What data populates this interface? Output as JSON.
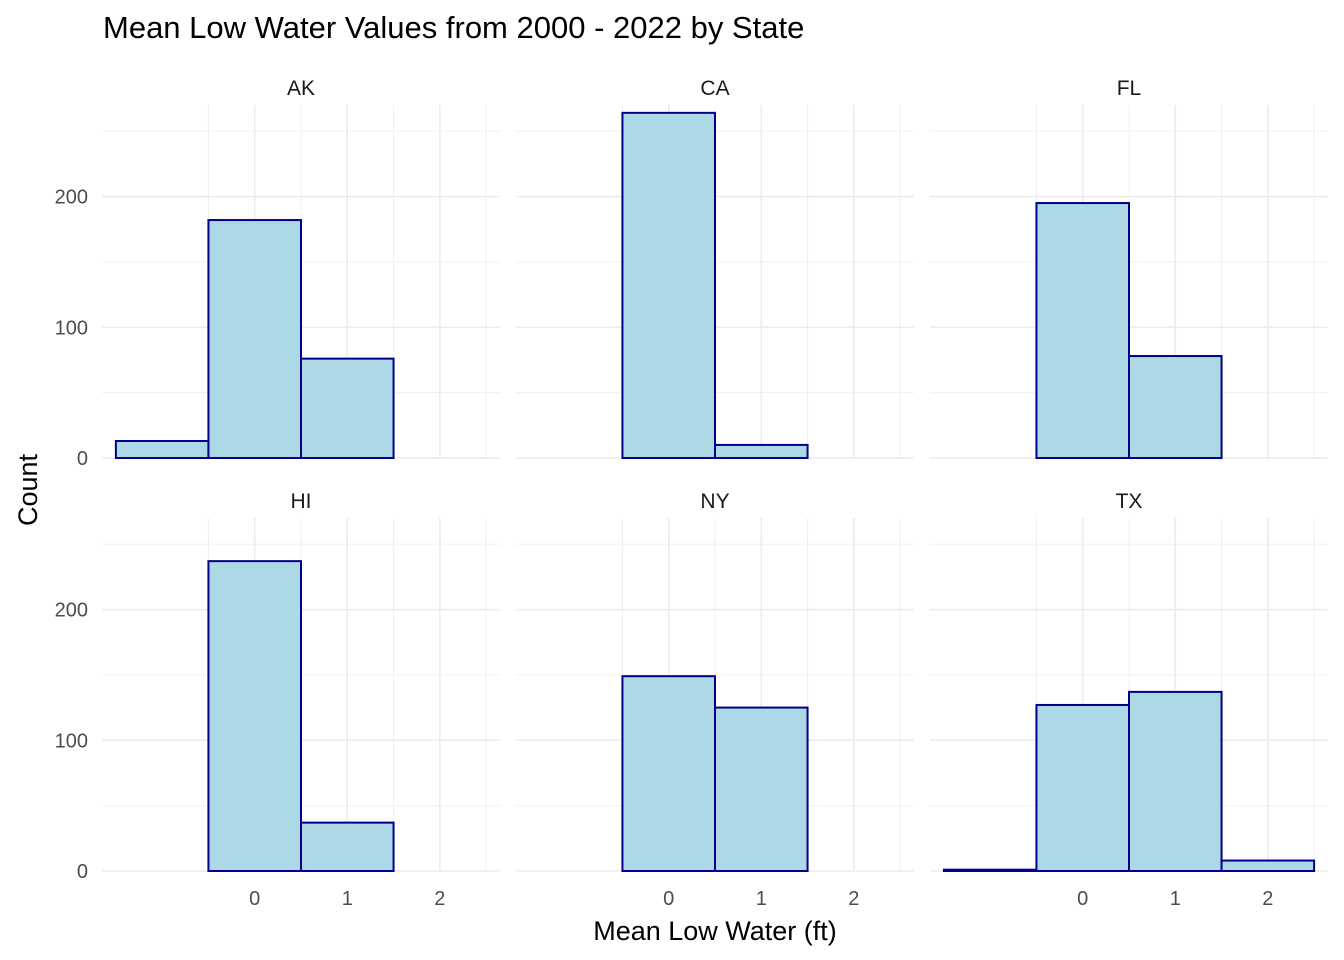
{
  "chart_data": {
    "type": "bar",
    "title": "Mean Low Water Values from 2000 - 2022 by State",
    "xlabel": "Mean Low Water (ft)",
    "ylabel": "Count",
    "x_ticks": [
      "0",
      "1",
      "2"
    ],
    "y_ticks": [
      "0",
      "100",
      "200"
    ],
    "xlim": [
      -1.65,
      2.65
    ],
    "ylim": [
      0,
      270
    ],
    "bin_centers": [
      -1,
      0,
      1,
      2
    ],
    "bin_width": 1,
    "grid": true,
    "fill_color": "#add8e6",
    "outline_color": "#00008b",
    "panels": [
      {
        "state": "AK",
        "values": [
          13,
          182,
          76,
          0
        ]
      },
      {
        "state": "CA",
        "values": [
          0,
          264,
          10,
          0
        ]
      },
      {
        "state": "FL",
        "values": [
          0,
          195,
          78,
          0
        ]
      },
      {
        "state": "HI",
        "values": [
          0,
          237,
          37,
          0
        ]
      },
      {
        "state": "NY",
        "values": [
          0,
          149,
          125,
          0
        ]
      },
      {
        "state": "TX",
        "values": [
          1,
          127,
          137,
          8
        ]
      }
    ]
  }
}
